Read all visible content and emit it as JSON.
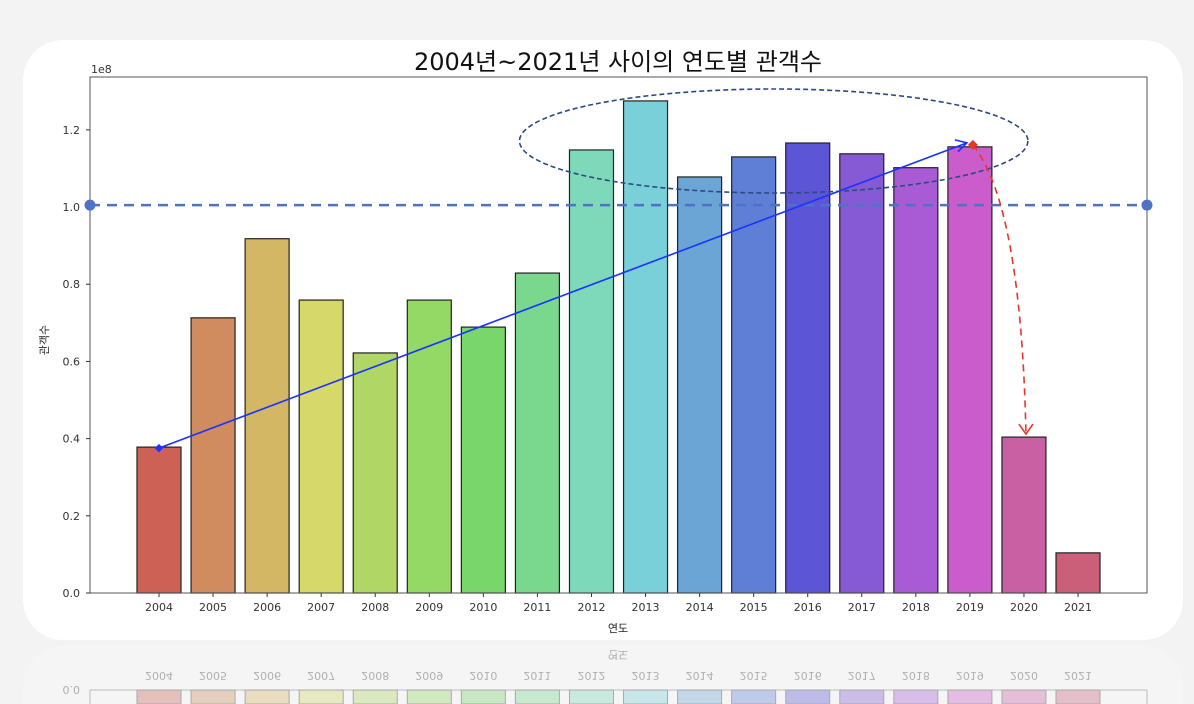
{
  "chart_data": {
    "type": "bar",
    "title": "2004년~2021년 사이의 연도별 관객수",
    "xlabel": "연도",
    "ylabel": "관객수",
    "y_offset_label": "1e8",
    "categories": [
      "2004",
      "2005",
      "2006",
      "2007",
      "2008",
      "2009",
      "2010",
      "2011",
      "2012",
      "2013",
      "2014",
      "2015",
      "2016",
      "2017",
      "2018",
      "2019",
      "2020",
      "2021"
    ],
    "values": [
      0.378,
      0.713,
      0.918,
      0.759,
      0.622,
      0.759,
      0.689,
      0.829,
      1.148,
      1.275,
      1.078,
      1.13,
      1.166,
      1.138,
      1.102,
      1.156,
      0.404,
      0.104
    ],
    "value_scale": 100000000,
    "yticks": [
      "0.0",
      "0.2",
      "0.4",
      "0.6",
      "0.8",
      "1.0",
      "1.2"
    ],
    "ylim": [
      0,
      1.337
    ],
    "grid": false,
    "colors": [
      "#cd6155",
      "#d08c5f",
      "#d4b764",
      "#d6d96a",
      "#b0d766",
      "#94d865",
      "#79d66b",
      "#7ad78e",
      "#7dd9ba",
      "#79d0d8",
      "#6aa5d6",
      "#5f7fd6",
      "#5c56d6",
      "#8659d5",
      "#a85bd5",
      "#cb5ccb",
      "#c960a4",
      "#cb5f79"
    ],
    "annotations": {
      "reference_line_value": 1.005,
      "reference_line_color": "#4f72c4",
      "trend_arrow": {
        "from": "2004",
        "to": "2019",
        "color": "#1a33ff"
      },
      "highlight_ellipse": {
        "from": "2012",
        "to": "2019",
        "color": "#2c4a80"
      },
      "drop_arrow": {
        "from": "2019",
        "to": "2020",
        "color": "#e8352a"
      }
    }
  }
}
